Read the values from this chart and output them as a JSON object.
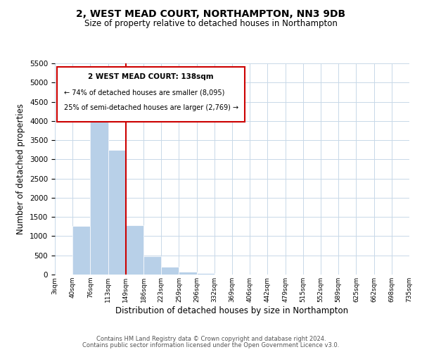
{
  "title": "2, WEST MEAD COURT, NORTHAMPTON, NN3 9DB",
  "subtitle": "Size of property relative to detached houses in Northampton",
  "xlabel": "Distribution of detached houses by size in Northampton",
  "ylabel": "Number of detached properties",
  "bar_color": "#b8d0e8",
  "bin_labels": [
    "3sqm",
    "40sqm",
    "76sqm",
    "113sqm",
    "149sqm",
    "186sqm",
    "223sqm",
    "259sqm",
    "296sqm",
    "332sqm",
    "369sqm",
    "406sqm",
    "442sqm",
    "479sqm",
    "515sqm",
    "552sqm",
    "589sqm",
    "625sqm",
    "662sqm",
    "698sqm",
    "735sqm"
  ],
  "bar_values": [
    0,
    1270,
    4290,
    3250,
    1290,
    480,
    210,
    80,
    30,
    0,
    0,
    0,
    0,
    0,
    0,
    0,
    0,
    0,
    0,
    0
  ],
  "ylim": [
    0,
    5500
  ],
  "yticks": [
    0,
    500,
    1000,
    1500,
    2000,
    2500,
    3000,
    3500,
    4000,
    4500,
    5000,
    5500
  ],
  "vline_color": "#cc0000",
  "annotation_title": "2 WEST MEAD COURT: 138sqm",
  "annotation_line1": "← 74% of detached houses are smaller (8,095)",
  "annotation_line2": "25% of semi-detached houses are larger (2,769) →",
  "footer1": "Contains HM Land Registry data © Crown copyright and database right 2024.",
  "footer2": "Contains public sector information licensed under the Open Government Licence v3.0.",
  "background_color": "#ffffff",
  "grid_color": "#c8d8e8"
}
